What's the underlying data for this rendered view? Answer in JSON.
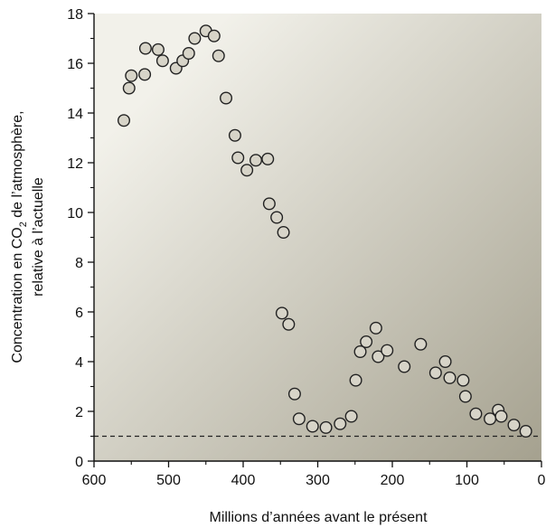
{
  "chart_data": {
    "type": "scatter",
    "title": "",
    "xlabel": "Millions d’années avant le présent",
    "ylabel_line1_prefix": "Concentration en CO",
    "ylabel_line1_sub": "2",
    "ylabel_line1_suffix": " de l’atmosphère,",
    "ylabel_line2": "relative à l’actuelle",
    "xlim": [
      600,
      0
    ],
    "ylim": [
      0,
      18
    ],
    "x_reversed": true,
    "x_ticks": [
      600,
      500,
      400,
      300,
      200,
      100,
      0
    ],
    "y_ticks": [
      0,
      2,
      4,
      6,
      8,
      10,
      12,
      14,
      16,
      18
    ],
    "x_tick_labels": [
      "600",
      "500",
      "400",
      "300",
      "200",
      "100",
      "0"
    ],
    "y_tick_labels": [
      "0",
      "2",
      "4",
      "6",
      "8",
      "10",
      "12",
      "14",
      "16",
      "18"
    ],
    "reference_line": {
      "y": 1,
      "style": "dashed"
    },
    "grid": false,
    "colors": {
      "marker_fill": "#d7d4c8",
      "marker_stroke": "#222222",
      "background_light": "#f2f1ea",
      "background_dark": "#a5a18f",
      "axis": "#111111"
    },
    "points": [
      {
        "x": 560,
        "y": 13.7
      },
      {
        "x": 553,
        "y": 15.0
      },
      {
        "x": 550,
        "y": 15.5
      },
      {
        "x": 532,
        "y": 15.55
      },
      {
        "x": 531,
        "y": 16.6
      },
      {
        "x": 514,
        "y": 16.55
      },
      {
        "x": 508,
        "y": 16.1
      },
      {
        "x": 490,
        "y": 15.8
      },
      {
        "x": 481,
        "y": 16.1
      },
      {
        "x": 473,
        "y": 16.4
      },
      {
        "x": 465,
        "y": 17.0
      },
      {
        "x": 450,
        "y": 17.3
      },
      {
        "x": 439,
        "y": 17.1
      },
      {
        "x": 433,
        "y": 16.3
      },
      {
        "x": 423,
        "y": 14.6
      },
      {
        "x": 411,
        "y": 13.1
      },
      {
        "x": 407,
        "y": 12.2
      },
      {
        "x": 395,
        "y": 11.7
      },
      {
        "x": 383,
        "y": 12.1
      },
      {
        "x": 367,
        "y": 12.15
      },
      {
        "x": 365,
        "y": 10.35
      },
      {
        "x": 355,
        "y": 9.8
      },
      {
        "x": 346,
        "y": 9.2
      },
      {
        "x": 348,
        "y": 5.95
      },
      {
        "x": 339,
        "y": 5.5
      },
      {
        "x": 331,
        "y": 2.7
      },
      {
        "x": 325,
        "y": 1.7
      },
      {
        "x": 307,
        "y": 1.4
      },
      {
        "x": 289,
        "y": 1.35
      },
      {
        "x": 270,
        "y": 1.5
      },
      {
        "x": 255,
        "y": 1.8
      },
      {
        "x": 249,
        "y": 3.25
      },
      {
        "x": 243,
        "y": 4.4
      },
      {
        "x": 235,
        "y": 4.8
      },
      {
        "x": 222,
        "y": 5.35
      },
      {
        "x": 219,
        "y": 4.2
      },
      {
        "x": 207,
        "y": 4.45
      },
      {
        "x": 184,
        "y": 3.8
      },
      {
        "x": 162,
        "y": 4.7
      },
      {
        "x": 142,
        "y": 3.55
      },
      {
        "x": 129,
        "y": 4.0
      },
      {
        "x": 123,
        "y": 3.35
      },
      {
        "x": 105,
        "y": 3.25
      },
      {
        "x": 102,
        "y": 2.6
      },
      {
        "x": 88,
        "y": 1.9
      },
      {
        "x": 69,
        "y": 1.7
      },
      {
        "x": 58,
        "y": 2.05
      },
      {
        "x": 54,
        "y": 1.8
      },
      {
        "x": 37,
        "y": 1.45
      },
      {
        "x": 21,
        "y": 1.2
      }
    ]
  }
}
